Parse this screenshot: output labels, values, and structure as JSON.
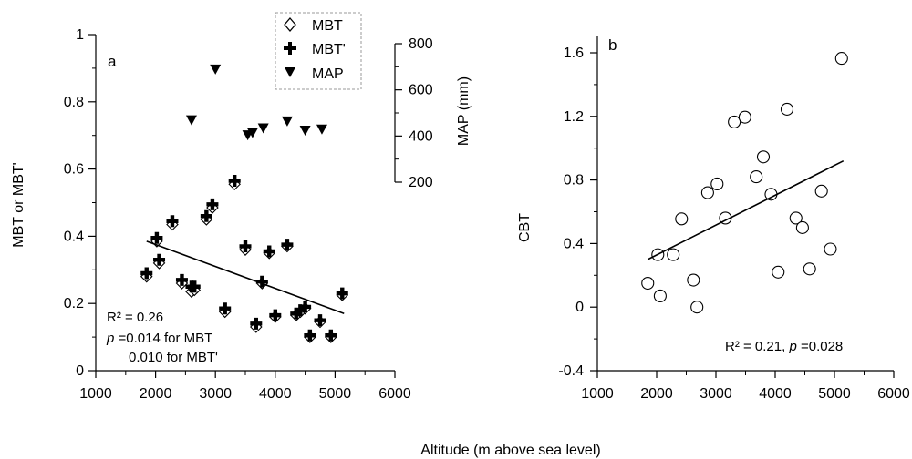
{
  "figure": {
    "shared_xlabel": "Altitude (m above sea level)"
  },
  "chart_data": [
    {
      "type": "scatter",
      "panel": "a",
      "xlabel": "",
      "ylabel": "MBT or MBT'",
      "y2label": "MAP (mm)",
      "xlim": [
        1000,
        6000
      ],
      "ylim": [
        0,
        1
      ],
      "y2lim": [
        200,
        800
      ],
      "xticks": [
        "1000",
        "2000",
        "3000",
        "4000",
        "5000",
        "6000"
      ],
      "yticks": [
        "0",
        "0.2",
        "0.4",
        "0.6",
        "0.8",
        "1"
      ],
      "y2ticks": [
        "200",
        "400",
        "600",
        "800"
      ],
      "legend": {
        "placement": "top-center",
        "entries": [
          {
            "name": "MBT",
            "marker": "diamond-open"
          },
          {
            "name": "MBT'",
            "marker": "plus-bold"
          },
          {
            "name": "MAP",
            "marker": "triangle-down-filled"
          }
        ]
      },
      "series": [
        {
          "name": "MBT",
          "axis": "left",
          "points": [
            [
              1850,
              0.28
            ],
            [
              2020,
              0.385
            ],
            [
              2060,
              0.32
            ],
            [
              2280,
              0.435
            ],
            [
              2440,
              0.26
            ],
            [
              2600,
              0.235
            ],
            [
              2650,
              0.24
            ],
            [
              2850,
              0.45
            ],
            [
              2950,
              0.485
            ],
            [
              3160,
              0.175
            ],
            [
              3320,
              0.555
            ],
            [
              3500,
              0.36
            ],
            [
              3680,
              0.13
            ],
            [
              3780,
              0.26
            ],
            [
              3900,
              0.35
            ],
            [
              4000,
              0.16
            ],
            [
              4200,
              0.37
            ],
            [
              4350,
              0.165
            ],
            [
              4420,
              0.175
            ],
            [
              4500,
              0.185
            ],
            [
              4580,
              0.1
            ],
            [
              4750,
              0.145
            ],
            [
              4930,
              0.1
            ],
            [
              5120,
              0.225
            ]
          ]
        },
        {
          "name": "MBT'",
          "axis": "left",
          "points": [
            [
              1850,
              0.29
            ],
            [
              2020,
              0.395
            ],
            [
              2060,
              0.33
            ],
            [
              2280,
              0.445
            ],
            [
              2440,
              0.27
            ],
            [
              2600,
              0.25
            ],
            [
              2650,
              0.25
            ],
            [
              2850,
              0.46
            ],
            [
              2950,
              0.495
            ],
            [
              3160,
              0.185
            ],
            [
              3320,
              0.565
            ],
            [
              3500,
              0.37
            ],
            [
              3680,
              0.14
            ],
            [
              3780,
              0.265
            ],
            [
              3900,
              0.355
            ],
            [
              4000,
              0.165
            ],
            [
              4200,
              0.375
            ],
            [
              4350,
              0.17
            ],
            [
              4420,
              0.18
            ],
            [
              4500,
              0.19
            ],
            [
              4580,
              0.105
            ],
            [
              4750,
              0.15
            ],
            [
              4930,
              0.105
            ],
            [
              5120,
              0.23
            ]
          ]
        },
        {
          "name": "MAP",
          "axis": "right",
          "points": [
            [
              2600,
              470
            ],
            [
              3000,
              690
            ],
            [
              3540,
              405
            ],
            [
              3620,
              415
            ],
            [
              3800,
              435
            ],
            [
              4200,
              465
            ],
            [
              4500,
              425
            ],
            [
              4780,
              430
            ]
          ]
        }
      ],
      "trendline": {
        "x": [
          1850,
          5150
        ],
        "y": [
          0.385,
          0.17
        ]
      },
      "annotations": {
        "r2": "R² = 0.26",
        "p_line1_italic": "p",
        "p_line1_rest": " =0.014 for MBT",
        "p_line2": "0.010 for MBT'"
      }
    },
    {
      "type": "scatter",
      "panel": "b",
      "xlabel": "",
      "ylabel": "CBT",
      "xlim": [
        1000,
        6000
      ],
      "ylim": [
        -0.4,
        1.7
      ],
      "xticks": [
        "1000",
        "2000",
        "3000",
        "4000",
        "5000",
        "6000"
      ],
      "yticks": [
        "-0.4",
        "0",
        "0.4",
        "0.8",
        "1.2",
        "1.6"
      ],
      "series": [
        {
          "name": "CBT",
          "marker": "circle-open",
          "points": [
            [
              1850,
              0.15
            ],
            [
              2020,
              0.33
            ],
            [
              2060,
              0.07
            ],
            [
              2280,
              0.33
            ],
            [
              2420,
              0.555
            ],
            [
              2620,
              0.17
            ],
            [
              2680,
              0.0
            ],
            [
              2860,
              0.72
            ],
            [
              3020,
              0.775
            ],
            [
              3160,
              0.56
            ],
            [
              3310,
              1.165
            ],
            [
              3490,
              1.195
            ],
            [
              3680,
              0.82
            ],
            [
              3800,
              0.945
            ],
            [
              3930,
              0.71
            ],
            [
              4050,
              0.22
            ],
            [
              4200,
              1.245
            ],
            [
              4350,
              0.56
            ],
            [
              4460,
              0.5
            ],
            [
              4580,
              0.24
            ],
            [
              4780,
              0.73
            ],
            [
              4930,
              0.365
            ],
            [
              5120,
              1.565
            ]
          ]
        }
      ],
      "trendline": {
        "x": [
          1850,
          5150
        ],
        "y": [
          0.3,
          0.92
        ]
      },
      "annotations": {
        "r2_text": "R² = 0.21, ",
        "p_italic": "p",
        "p_rest": " =0.028"
      }
    }
  ]
}
